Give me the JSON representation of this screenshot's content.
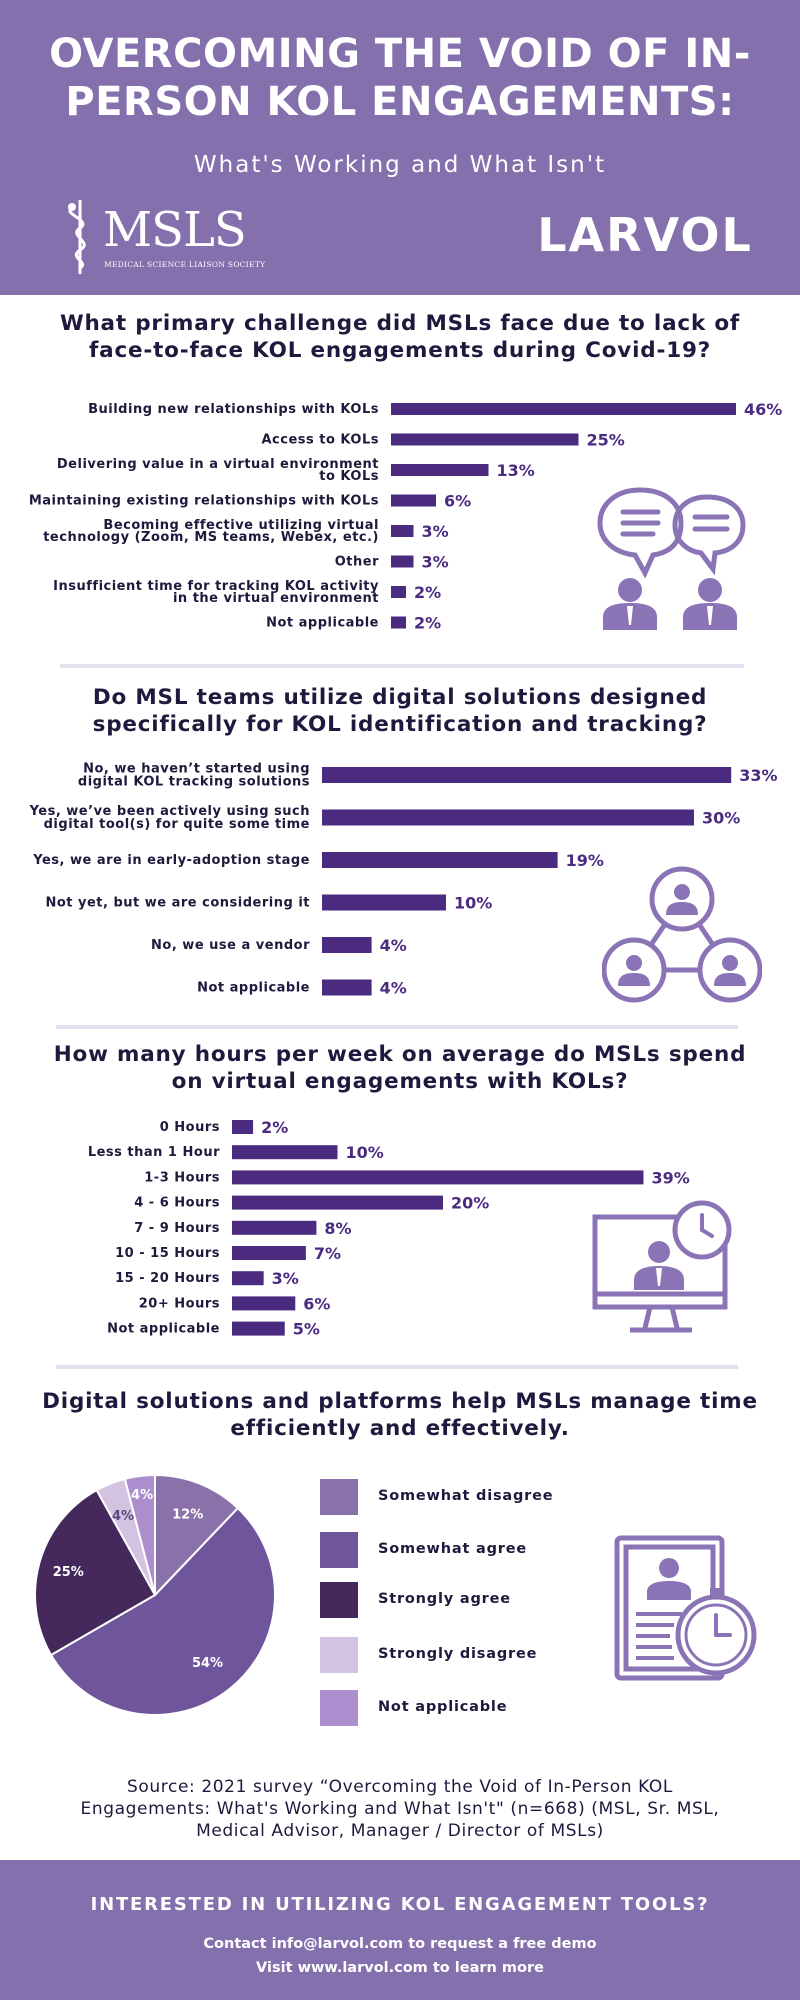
{
  "header": {
    "title": "OVERCOMING THE VOID OF IN-PERSON KOL ENGAGEMENTS:",
    "subtitle": "What's Working and What Isn't",
    "msls_logo_text": "MSLS",
    "msls_logo_sub": "MEDICAL SCIENCE LIAISON SOCIETY",
    "larvol_logo_text": "LARVOL"
  },
  "colors": {
    "header_bg": "#8470ad",
    "bar": "#4a2b80",
    "divider": "#e3e1ef",
    "icon": "#8a74b5"
  },
  "icons": [
    "chat-people-icon",
    "network-people-icon",
    "monitor-clock-icon",
    "clipboard-stopwatch-icon"
  ],
  "chart_data": [
    {
      "type": "bar",
      "orientation": "horizontal",
      "title": "What primary challenge did MSLs face due to lack of face-to-face KOL engagements during Covid-19?",
      "categories": [
        "Building new relationships with KOLs",
        "Access to KOLs",
        "Delivering value in a virtual environment to KOLs",
        "Maintaining existing relationships with KOLs",
        "Becoming effective utilizing virtual technology (Zoom, MS teams, Webex, etc.)",
        "Other",
        "Insufficient time for tracking KOL activity in the virtual environment",
        "Not applicable"
      ],
      "values": [
        46,
        25,
        13,
        6,
        3,
        3,
        2,
        2
      ],
      "value_labels": [
        "46%",
        "25%",
        "13%",
        "6%",
        "3%",
        "3%",
        "2%",
        "2%"
      ],
      "unit": "%"
    },
    {
      "type": "bar",
      "orientation": "horizontal",
      "title": "Do MSL teams utilize digital solutions designed specifically for KOL identification and tracking?",
      "categories": [
        "No, we haven't started using digital KOL tracking solutions",
        "Yes, we've been actively using such digital tool(s) for quite some time",
        "Yes, we are in early-adoption stage",
        "Not yet, but we are considering it",
        "No, we use a vendor",
        "Not applicable"
      ],
      "values": [
        33,
        30,
        19,
        10,
        4,
        4
      ],
      "value_labels": [
        "33%",
        "30%",
        "19%",
        "10%",
        "4%",
        "4%"
      ],
      "unit": "%"
    },
    {
      "type": "bar",
      "orientation": "horizontal",
      "title": "How many hours per week on average do MSLs spend on virtual engagements with KOLs?",
      "categories": [
        "0 Hours",
        "Less than 1 Hour",
        "1-3 Hours",
        "4 - 6 Hours",
        "7 - 9 Hours",
        "10 - 15 Hours",
        "15 - 20 Hours",
        "20+ Hours",
        "Not applicable"
      ],
      "values": [
        2,
        10,
        39,
        20,
        8,
        7,
        3,
        6,
        5
      ],
      "value_labels": [
        "2%",
        "10%",
        "39%",
        "20%",
        "8%",
        "7%",
        "3%",
        "6%",
        "5%"
      ],
      "unit": "%"
    },
    {
      "type": "pie",
      "title": "Digital solutions and platforms help MSLs manage time efficiently and effectively.",
      "slices": [
        {
          "name": "Somewhat disagree",
          "value": 12,
          "label": "12%",
          "color": "#8b71aa"
        },
        {
          "name": "Somewhat agree",
          "value": 54,
          "label": "54%",
          "color": "#6f569c"
        },
        {
          "name": "Strongly agree",
          "value": 25,
          "label": "25%",
          "color": "#45295c"
        },
        {
          "name": "Strongly disagree",
          "value": 4,
          "label": "4%",
          "color": "#d3c2e0"
        },
        {
          "name": "Not applicable",
          "value": 4,
          "label": "4%",
          "color": "#ac8dce"
        }
      ],
      "legend": [
        "Somewhat disagree",
        "Somewhat agree",
        "Strongly agree",
        "Strongly disagree",
        "Not applicable"
      ]
    }
  ],
  "source": "Source: 2021 survey “Overcoming the Void of In-Person KOL Engagements: What's Working and What Isn't\" (n=668) (MSL, Sr. MSL, Medical Advisor, Manager / Director of MSLs)",
  "footer": {
    "title": "INTERESTED IN UTILIZING KOL ENGAGEMENT TOOLS?",
    "line1": "Contact info@larvol.com to request a free demo",
    "line2": "Visit www.larvol.com to learn more"
  }
}
